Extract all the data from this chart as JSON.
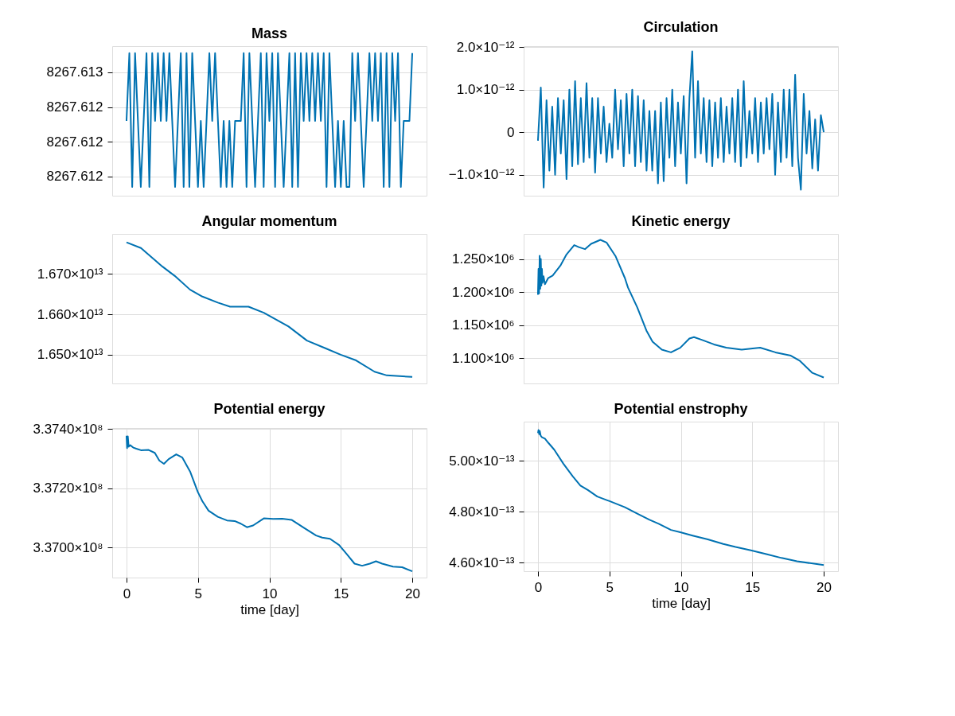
{
  "chart_data": [
    {
      "type": "line",
      "title": "Mass",
      "xlim": [
        -1,
        21
      ],
      "ylim": [
        8267.61189,
        8267.61275
      ],
      "yticks": [
        {
          "value": 8267.6126,
          "label": "8267.613"
        },
        {
          "value": 8267.6124,
          "label": "8267.612"
        },
        {
          "value": 8267.6122,
          "label": "8267.612"
        },
        {
          "value": 8267.612,
          "label": "8267.612"
        }
      ],
      "grid": "y",
      "tick_labels": "y",
      "series": [
        {
          "color": "#0072b2",
          "x": [
            0.0,
            0.2,
            0.4,
            0.6,
            0.8,
            1.0,
            1.2,
            1.4,
            1.6,
            1.8,
            2.0,
            2.2,
            2.4,
            2.6,
            2.8,
            3.0,
            3.2,
            3.4,
            3.6,
            3.8,
            4.0,
            4.2,
            4.4,
            4.6,
            4.8,
            5.0,
            5.2,
            5.4,
            5.6,
            5.8,
            6.0,
            6.2,
            6.4,
            6.6,
            6.8,
            7.0,
            7.2,
            7.4,
            7.6,
            7.8,
            8.0,
            8.2,
            8.4,
            8.6,
            8.8,
            9.0,
            9.2,
            9.4,
            9.6,
            9.8,
            10.0,
            10.2,
            10.4,
            10.6,
            10.8,
            11.0,
            11.2,
            11.4,
            11.6,
            11.8,
            12.0,
            12.2,
            12.4,
            12.6,
            12.8,
            13.0,
            13.2,
            13.4,
            13.6,
            13.8,
            14.0,
            14.2,
            14.4,
            14.6,
            14.8,
            15.0,
            15.2,
            15.4,
            15.6,
            15.8,
            16.0,
            16.2,
            16.4,
            16.6,
            16.8,
            17.0,
            17.2,
            17.4,
            17.6,
            17.8,
            18.0,
            18.2,
            18.4,
            18.6,
            18.8,
            19.0,
            19.2,
            19.4,
            19.6,
            19.8,
            20.0
          ],
          "values": [
            8267.61232,
            8267.61271,
            8267.61194,
            8267.61271,
            8267.61232,
            8267.61194,
            8267.61232,
            8267.61271,
            8267.61194,
            8267.61271,
            8267.61232,
            8267.61271,
            8267.61232,
            8267.61271,
            8267.61232,
            8267.61271,
            8267.61232,
            8267.61194,
            8267.61232,
            8267.61271,
            8267.61194,
            8267.61271,
            8267.61194,
            8267.61271,
            8267.61232,
            8267.61194,
            8267.61232,
            8267.61194,
            8267.61232,
            8267.61271,
            8267.61232,
            8267.61271,
            8267.61232,
            8267.61194,
            8267.61232,
            8267.61194,
            8267.61232,
            8267.61194,
            8267.61232,
            8267.61232,
            8267.61232,
            8267.61271,
            8267.61194,
            8267.61271,
            8267.61232,
            8267.61194,
            8267.61232,
            8267.61271,
            8267.61194,
            8267.61271,
            8267.61232,
            8267.61271,
            8267.61194,
            8267.61271,
            8267.61232,
            8267.61194,
            8267.61232,
            8267.61271,
            8267.61194,
            8267.61271,
            8267.61194,
            8267.61271,
            8267.61232,
            8267.61271,
            8267.61232,
            8267.61271,
            8267.61232,
            8267.61271,
            8267.61232,
            8267.61271,
            8267.61194,
            8267.61271,
            8267.61232,
            8267.61194,
            8267.61232,
            8267.61194,
            8267.61232,
            8267.61194,
            8267.61194,
            8267.61271,
            8267.61232,
            8267.61271,
            8267.61232,
            8267.61194,
            8267.61232,
            8267.61271,
            8267.61232,
            8267.61271,
            8267.61232,
            8267.61271,
            8267.61194,
            8267.61271,
            8267.61194,
            8267.61271,
            8267.61232,
            8267.61271,
            8267.61194,
            8267.61232,
            8267.61232,
            8267.61232,
            8267.61271
          ]
        }
      ]
    },
    {
      "type": "line",
      "title": "Circulation",
      "xlim": [
        -1,
        21
      ],
      "ylim": [
        -1.49e-12,
        2.02e-12
      ],
      "yticks": [
        {
          "value": 2e-12,
          "label": "2.0×10⁻¹²"
        },
        {
          "value": 1e-12,
          "label": "1.0×10⁻¹²"
        },
        {
          "value": 0,
          "label": "0"
        },
        {
          "value": -1e-12,
          "label": "−1.0×10⁻¹²"
        }
      ],
      "grid": "y",
      "tick_labels": "y",
      "series": [
        {
          "color": "#0072b2",
          "x": [
            0.0,
            0.2,
            0.4,
            0.6,
            0.8,
            1.0,
            1.2,
            1.4,
            1.6,
            1.8,
            2.0,
            2.2,
            2.4,
            2.6,
            2.8,
            3.0,
            3.2,
            3.4,
            3.6,
            3.8,
            4.0,
            4.2,
            4.4,
            4.6,
            4.8,
            5.0,
            5.2,
            5.4,
            5.6,
            5.8,
            6.0,
            6.2,
            6.4,
            6.6,
            6.8,
            7.0,
            7.2,
            7.4,
            7.6,
            7.8,
            8.0,
            8.2,
            8.4,
            8.6,
            8.8,
            9.0,
            9.2,
            9.4,
            9.6,
            9.8,
            10.0,
            10.2,
            10.4,
            10.6,
            10.8,
            11.0,
            11.2,
            11.4,
            11.6,
            11.8,
            12.0,
            12.2,
            12.4,
            12.6,
            12.8,
            13.0,
            13.2,
            13.4,
            13.6,
            13.8,
            14.0,
            14.2,
            14.4,
            14.6,
            14.8,
            15.0,
            15.2,
            15.4,
            15.6,
            15.8,
            16.0,
            16.2,
            16.4,
            16.6,
            16.8,
            17.0,
            17.2,
            17.4,
            17.6,
            17.8,
            18.0,
            18.2,
            18.4,
            18.6,
            18.8,
            19.0,
            19.2,
            19.4,
            19.6,
            19.8,
            20.0
          ],
          "values": [
            -2e-13,
            1.05e-12,
            -1.3e-12,
            7.5e-13,
            -9e-13,
            6e-13,
            -1e-12,
            8e-13,
            -5e-13,
            7.5e-13,
            -1.1e-12,
            1e-12,
            -8e-13,
            1.2e-12,
            -7.5e-13,
            8e-13,
            -7e-13,
            1.15e-12,
            -6e-13,
            8e-13,
            -9.5e-13,
            8e-13,
            -5e-13,
            6e-13,
            -7e-13,
            2e-13,
            -6e-13,
            1e-12,
            -4e-13,
            7.5e-13,
            -8e-13,
            9e-13,
            -5e-13,
            1e-12,
            -8e-13,
            8.5e-13,
            -7e-13,
            7.5e-13,
            -9e-13,
            5e-13,
            -9e-13,
            5e-13,
            -1.2e-12,
            7e-13,
            -1.15e-12,
            8e-13,
            -6e-13,
            1e-12,
            -8e-13,
            7e-13,
            -5e-13,
            8.5e-13,
            -1.2e-12,
            8e-13,
            1.9e-12,
            -6e-13,
            1.2e-12,
            -5e-13,
            8e-13,
            -7e-13,
            7.5e-13,
            -8e-13,
            7e-13,
            -6e-13,
            8e-13,
            -7e-13,
            6e-13,
            -5e-13,
            8e-13,
            -7e-13,
            1e-12,
            -8e-13,
            1.2e-12,
            -6e-13,
            5e-13,
            -5e-13,
            8e-13,
            -7e-13,
            7e-13,
            -5e-13,
            8e-13,
            -4e-13,
            9e-13,
            -1e-12,
            7e-13,
            -7e-13,
            1e-12,
            -6e-13,
            1e-12,
            -8e-13,
            1.35e-12,
            -6e-13,
            -1.35e-12,
            9e-13,
            -5e-13,
            5e-13,
            -8.5e-13,
            3e-13,
            -9e-13,
            4e-13,
            0.0
          ]
        }
      ]
    },
    {
      "type": "line",
      "title": "Angular momentum",
      "xlim": [
        -1,
        21
      ],
      "ylim": [
        16429000000000.0,
        16799000000000.0
      ],
      "yticks": [
        {
          "value": 16700000000000.0,
          "label": "1.670×10¹³"
        },
        {
          "value": 16600000000000.0,
          "label": "1.660×10¹³"
        },
        {
          "value": 16500000000000.0,
          "label": "1.650×10¹³"
        }
      ],
      "grid": "y",
      "tick_labels": "y",
      "series": [
        {
          "color": "#0072b2",
          "x": [
            0,
            1.01,
            2.52,
            3.38,
            4.45,
            5.31,
            6.39,
            7.25,
            8.54,
            9.61,
            11.34,
            12.63,
            13.92,
            14.99,
            16.07,
            17.36,
            18.22,
            20.0
          ],
          "values": [
            16778000000000.0,
            16764000000000.0,
            16718000000000.0,
            16695000000000.0,
            16661000000000.0,
            16644000000000.0,
            16629000000000.0,
            16619000000000.0,
            16619000000000.0,
            16604000000000.0,
            16570000000000.0,
            16535000000000.0,
            16516000000000.0,
            16500000000000.0,
            16486000000000.0,
            16458000000000.0,
            16449000000000.0,
            16445000000000.0
          ]
        }
      ]
    },
    {
      "type": "line",
      "title": "Kinetic energy",
      "xlim": [
        -1,
        21
      ],
      "ylim": [
        1062000.0,
        1288000.0
      ],
      "yticks": [
        {
          "value": 1250000.0,
          "label": "1.250×10⁶"
        },
        {
          "value": 1200000.0,
          "label": "1.200×10⁶"
        },
        {
          "value": 1150000.0,
          "label": "1.150×10⁶"
        },
        {
          "value": 1100000.0,
          "label": "1.100×10⁶"
        }
      ],
      "grid": "y",
      "tick_labels": "y",
      "series": [
        {
          "color": "#0072b2",
          "x": [
            0,
            0.04,
            0.08,
            0.12,
            0.16,
            0.2,
            0.24,
            0.28,
            0.32,
            0.39,
            0.49,
            0.71,
            1.03,
            1.57,
            2.0,
            2.54,
            2.86,
            3.29,
            3.72,
            4.37,
            4.8,
            5.44,
            6.09,
            6.3,
            6.95,
            7.59,
            8.02,
            8.67,
            9.31,
            9.96,
            10.6,
            10.92,
            11.46,
            12.32,
            13.18,
            14.26,
            15.55,
            16.62,
            17.7,
            18.34,
            19.2,
            20.0
          ],
          "values": [
            1196000,
            1235000,
            1198000,
            1255000,
            1205000,
            1250000,
            1210000,
            1235000,
            1214000,
            1224000,
            1212000,
            1221000,
            1225000,
            1240000,
            1257000,
            1271000,
            1268000,
            1265000,
            1273000,
            1279000,
            1275000,
            1254000,
            1221000,
            1207000,
            1177000,
            1142000,
            1125000,
            1113000,
            1109000,
            1116000,
            1130000,
            1132000,
            1128000,
            1121000,
            1116000,
            1113000,
            1116000,
            1109000,
            1104000,
            1096000,
            1078000,
            1071000
          ]
        }
      ]
    },
    {
      "type": "line",
      "title": "Potential energy",
      "xlabel": "time [day]",
      "xlim": [
        -1,
        21
      ],
      "xticks": [
        0,
        5,
        10,
        15,
        20
      ],
      "ylim": [
        336898000,
        337403000
      ],
      "yticks": [
        {
          "value": 337400000,
          "label": "3.3740×10⁸"
        },
        {
          "value": 337200000,
          "label": "3.3720×10⁸"
        },
        {
          "value": 337000000,
          "label": "3.3700×10⁸"
        }
      ],
      "grid": true,
      "series": [
        {
          "color": "#0072b2",
          "x": [
            0,
            0.04,
            0.09,
            0.15,
            0.26,
            0.47,
            0.69,
            1.01,
            1.55,
            1.98,
            2.3,
            2.62,
            2.95,
            3.48,
            3.91,
            4.45,
            4.99,
            5.31,
            5.74,
            6.39,
            7.03,
            7.57,
            8.0,
            8.43,
            8.86,
            9.61,
            10.26,
            10.9,
            11.55,
            12.41,
            13.27,
            13.7,
            14.24,
            14.88,
            15.42,
            15.96,
            16.49,
            17.03,
            17.46,
            17.89,
            18.65,
            19.29,
            20.0
          ],
          "values": [
            337377000,
            337335000,
            337375000,
            337340000,
            337345000,
            337337000,
            337333000,
            337328000,
            337329000,
            337319000,
            337293000,
            337282000,
            337298000,
            337314000,
            337303000,
            337256000,
            337187000,
            337156000,
            337124000,
            337103000,
            337091000,
            337089000,
            337080000,
            337068000,
            337074000,
            337098000,
            337096000,
            337097000,
            337093000,
            337066000,
            337040000,
            337033000,
            337029000,
            337008000,
            336977000,
            336945000,
            336938000,
            336945000,
            336953000,
            336945000,
            336935000,
            336933000,
            336919000
          ]
        }
      ]
    },
    {
      "type": "line",
      "title": "Potential enstrophy",
      "xlabel": "time [day]",
      "xlim": [
        -1,
        21
      ],
      "xticks": [
        0,
        5,
        10,
        15,
        20
      ],
      "ylim": [
        4.566e-13,
        5.153e-13
      ],
      "yticks": [
        {
          "value": 5e-13,
          "label": "5.00×10⁻¹³"
        },
        {
          "value": 4.8e-13,
          "label": "4.80×10⁻¹³"
        },
        {
          "value": 4.6e-13,
          "label": "4.60×10⁻¹³"
        }
      ],
      "grid": true,
      "series": [
        {
          "color": "#0072b2",
          "x": [
            0,
            0.04,
            0.09,
            0.13,
            0.19,
            0.28,
            0.49,
            0.71,
            1.14,
            1.78,
            2.43,
            2.97,
            3.51,
            4.15,
            5.01,
            6.09,
            6.95,
            7.81,
            8.45,
            9.31,
            9.96,
            10.82,
            11.89,
            12.97,
            13.83,
            14.9,
            15.98,
            17.05,
            18.13,
            20.0
          ],
          "values": [
            5.108e-13,
            5.12e-13,
            5.104e-13,
            5.116e-13,
            5.098e-13,
            5.092e-13,
            5.086e-13,
            5.071e-13,
            5.043e-13,
            4.988e-13,
            4.939e-13,
            4.902e-13,
            4.884e-13,
            4.859e-13,
            4.841e-13,
            4.817e-13,
            4.792e-13,
            4.768e-13,
            4.752e-13,
            4.728e-13,
            4.719e-13,
            4.706e-13,
            4.691e-13,
            4.673e-13,
            4.661e-13,
            4.648e-13,
            4.633e-13,
            4.618e-13,
            4.605e-13,
            4.59e-13
          ]
        }
      ]
    }
  ]
}
